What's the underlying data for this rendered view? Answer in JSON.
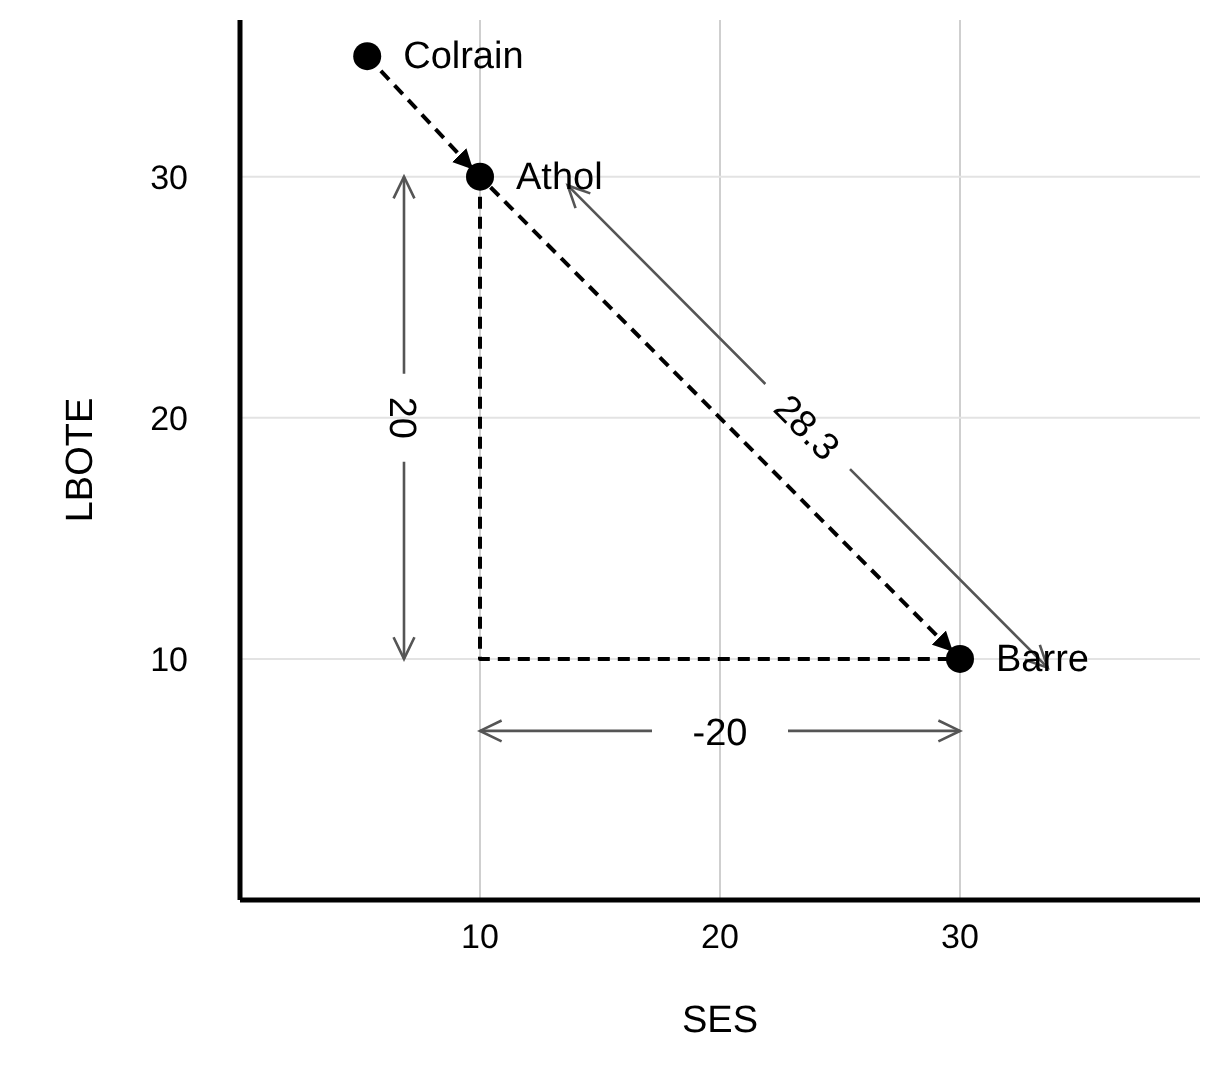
{
  "chart_data": {
    "type": "scatter",
    "xlabel": "SES",
    "ylabel": "LBOTE",
    "xlim": [
      0,
      40
    ],
    "ylim": [
      0,
      36.5
    ],
    "xticks": [
      10,
      20,
      30
    ],
    "yticks": [
      10,
      20,
      30
    ],
    "grid": true,
    "series": [
      {
        "x": [
          5.3,
          10,
          30
        ],
        "values": [
          35,
          30,
          10
        ],
        "color": "#000000",
        "marker": "circle"
      },
      {
        "type": "line",
        "x": [
          5.3,
          10,
          30
        ],
        "values": [
          35,
          30,
          10
        ],
        "color": "#000000",
        "marker": "none",
        "line_style": "dashed"
      },
      {
        "type": "line",
        "x": [
          10,
          10,
          30
        ],
        "values": [
          30,
          10,
          10
        ],
        "color": "#000000",
        "marker": "none",
        "line_style": "dashed"
      }
    ],
    "annotations": [
      {
        "text": "Colrain",
        "x": 5.3,
        "y": 35
      },
      {
        "text": "Athol",
        "x": 10,
        "y": 30
      },
      {
        "text": "Barre",
        "x": 30,
        "y": 10
      },
      "20",
      "-20",
      "28.3"
    ]
  }
}
